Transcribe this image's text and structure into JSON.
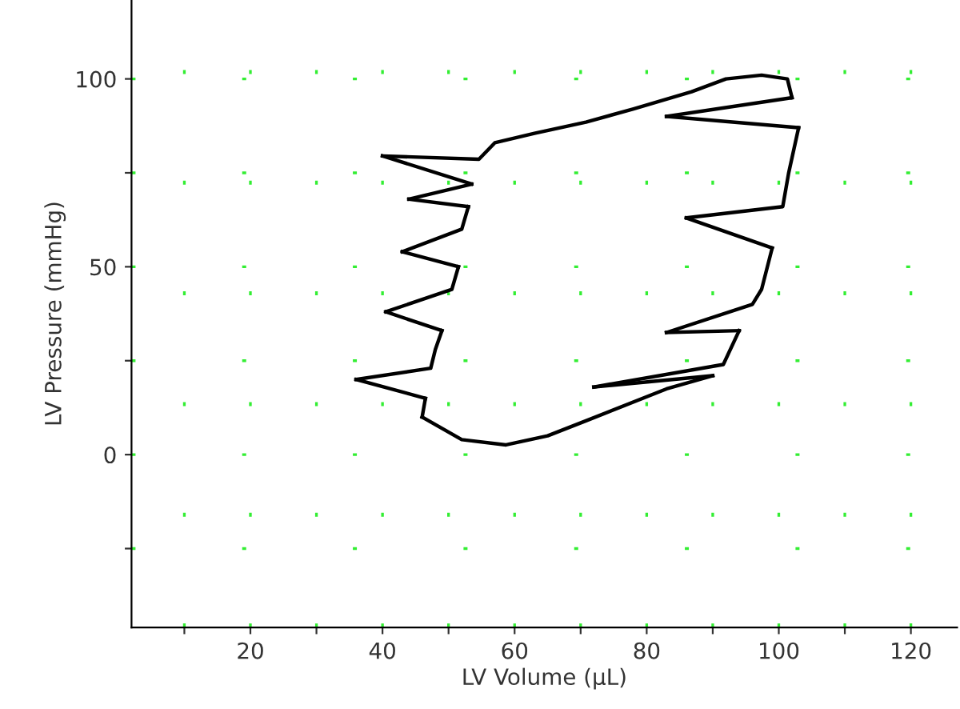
{
  "chart_data": {
    "type": "line",
    "xlabel": "LV Volume (µL)",
    "ylabel": "LV Pressure (mmHg)",
    "xlim": [
      2,
      127
    ],
    "ylim": [
      -46,
      121
    ],
    "xticks": [
      {
        "value": 10,
        "label": null
      },
      20,
      {
        "value": 30,
        "label": null
      },
      40,
      {
        "value": 50,
        "label": null
      },
      60,
      {
        "value": 70,
        "label": null
      },
      80,
      {
        "value": 90,
        "label": null
      },
      100,
      {
        "value": 110,
        "label": null
      },
      120
    ],
    "yticks": [
      {
        "value": -25,
        "label": null
      },
      0,
      {
        "value": 25,
        "label": null
      },
      50,
      {
        "value": 75,
        "label": null
      },
      100
    ],
    "grid": true,
    "marker": "none",
    "line_style": "solid",
    "series": [
      {
        "color": "#000000",
        "x": [
          46,
          52,
          58.7,
          65,
          70.8,
          83,
          90
        ],
        "values": [
          10,
          4,
          2.6,
          5,
          9,
          17.5,
          21
        ]
      },
      {
        "color": "#000000",
        "x": [
          72,
          90
        ],
        "values": [
          18,
          21
        ]
      },
      {
        "color": "#000000",
        "x": [
          72,
          91.6,
          94
        ],
        "values": [
          18,
          24,
          33
        ]
      },
      {
        "color": "#000000",
        "x": [
          83,
          94
        ],
        "values": [
          32.5,
          33
        ]
      },
      {
        "color": "#000000",
        "x": [
          83,
          96,
          97.4,
          99
        ],
        "values": [
          32.5,
          40,
          44,
          55
        ]
      },
      {
        "color": "#000000",
        "x": [
          86,
          99
        ],
        "values": [
          63,
          55
        ]
      },
      {
        "color": "#000000",
        "x": [
          86,
          100.6,
          101.5,
          103
        ],
        "values": [
          63,
          66,
          75,
          87
        ]
      },
      {
        "color": "#000000",
        "x": [
          83,
          103
        ],
        "values": [
          90,
          87
        ]
      },
      {
        "color": "#000000",
        "x": [
          83,
          102
        ],
        "values": [
          90,
          95
        ]
      },
      {
        "color": "#000000",
        "x": [
          40,
          54.6,
          57,
          63,
          70.8,
          78,
          86.8,
          92,
          97.4,
          101.3,
          102
        ],
        "values": [
          79.5,
          78.6,
          83,
          85.5,
          88.5,
          92,
          96.6,
          100,
          101,
          100,
          95
        ]
      },
      {
        "color": "#000000",
        "x": [
          40,
          53.5
        ],
        "values": [
          79.5,
          72
        ]
      },
      {
        "color": "#000000",
        "x": [
          44,
          53.5
        ],
        "values": [
          68,
          72
        ]
      },
      {
        "color": "#000000",
        "x": [
          44,
          53
        ],
        "values": [
          68,
          66
        ]
      },
      {
        "color": "#000000",
        "x": [
          43,
          52,
          53
        ],
        "values": [
          54,
          60,
          66
        ]
      },
      {
        "color": "#000000",
        "x": [
          43,
          51.5
        ],
        "values": [
          54,
          50
        ]
      },
      {
        "color": "#000000",
        "x": [
          40.5,
          50.5,
          51.5
        ],
        "values": [
          38,
          44,
          50
        ]
      },
      {
        "color": "#000000",
        "x": [
          40.5,
          49
        ],
        "values": [
          38,
          33
        ]
      },
      {
        "color": "#000000",
        "x": [
          36,
          47.3,
          48,
          49
        ],
        "values": [
          20,
          23,
          28,
          33
        ]
      },
      {
        "color": "#000000",
        "x": [
          36,
          46.5
        ],
        "values": [
          20,
          15
        ]
      },
      {
        "color": "#000000",
        "x": [
          46,
          46.5
        ],
        "values": [
          10,
          15
        ]
      }
    ]
  }
}
